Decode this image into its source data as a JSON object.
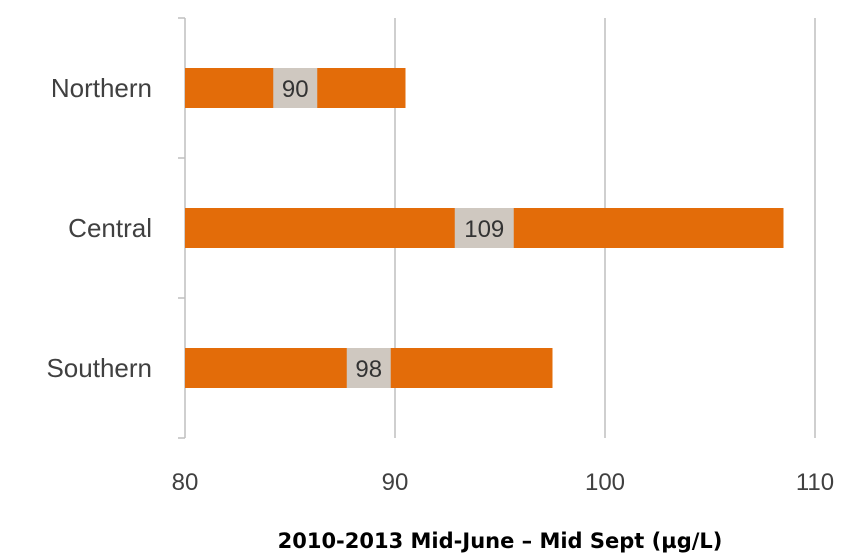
{
  "chart_data": {
    "type": "bar",
    "orientation": "horizontal",
    "categories": [
      "Northern",
      "Central",
      "Southern"
    ],
    "values": [
      90,
      109,
      98
    ],
    "data_labels": [
      "90",
      "109",
      "98"
    ],
    "xlabel": "2010-2013 Mid-June – Mid Sept (µg/L)",
    "xlim": [
      80,
      110
    ],
    "xticks": [
      80,
      90,
      100,
      110
    ],
    "xtick_labels": [
      "80",
      "90",
      "100",
      "110"
    ],
    "bar_values": [
      90.5,
      108.5,
      97.5
    ],
    "grid": "vertical gridlines",
    "legend": "none",
    "bar_color": "#E36C09",
    "label_box_color": "#CFC8C0"
  }
}
